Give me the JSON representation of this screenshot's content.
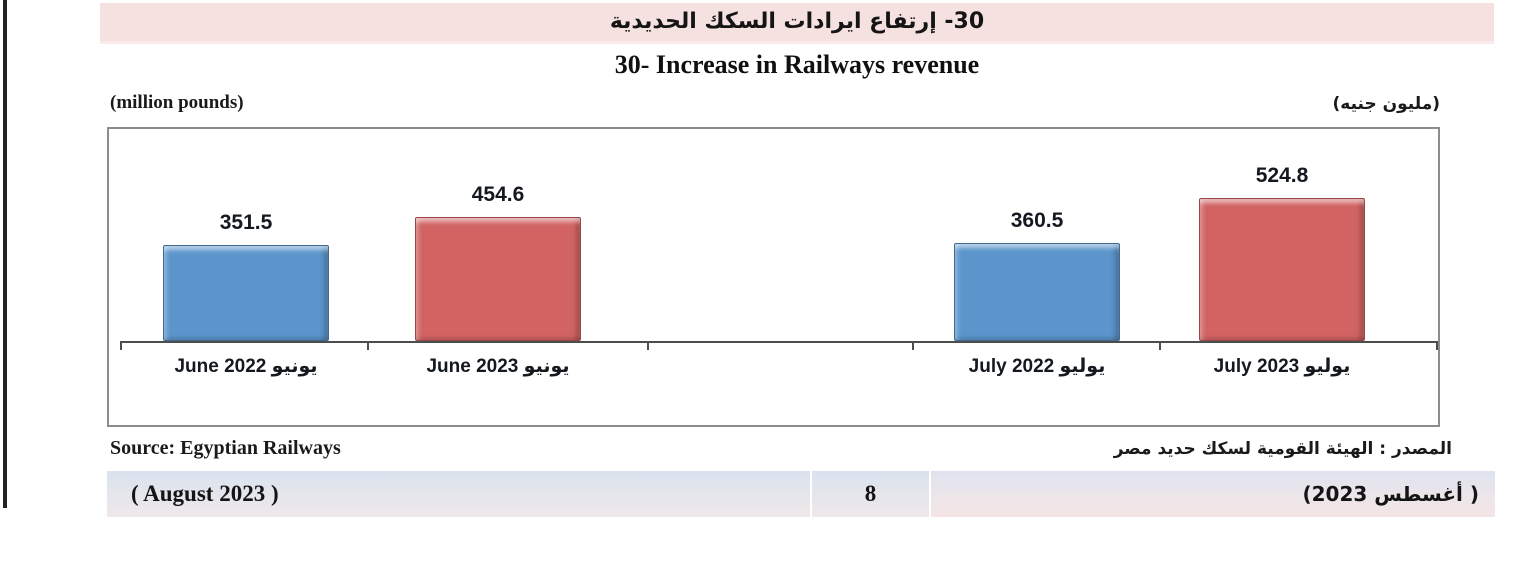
{
  "header": {
    "title_ar": "30- إرتفاع ايرادات السكك الحديدية",
    "title_en": "30- Increase in Railways revenue"
  },
  "units": {
    "left_en": "(million pounds)",
    "right_ar": "(مليون جنيه)"
  },
  "chart_data": {
    "type": "bar",
    "title": "30- Increase in Railways revenue",
    "title_ar": "30- إرتفاع ايرادات السكك الحديدية",
    "unit_label_en": "(million pounds)",
    "unit_label_ar": "(مليون جنيه)",
    "categories": [
      "June 2022 يونيو",
      "June 2023 يونيو",
      "July 2022 يوليو",
      "July 2023 يوليو"
    ],
    "values": [
      351.5,
      454.6,
      360.5,
      524.8
    ],
    "bar_colors": [
      "#5b95cb",
      "#d26363",
      "#5b95cb",
      "#d26363"
    ],
    "ylim": [
      0,
      600
    ],
    "grid": false,
    "legend": false,
    "data_labels": true
  },
  "source": {
    "en": "Source: Egyptian Railways",
    "ar": "المصدر : الهيئة القومية لسكك حديد مصر"
  },
  "footer": {
    "left_label": "( August 2023 )",
    "page_number": "8",
    "right_label": "( أغسطس 2023)"
  },
  "colors": {
    "header_bg": "#f6e1e1",
    "bar_blue": "#5b95cb",
    "bar_red": "#d26363",
    "axis": "#4d4d4d"
  }
}
